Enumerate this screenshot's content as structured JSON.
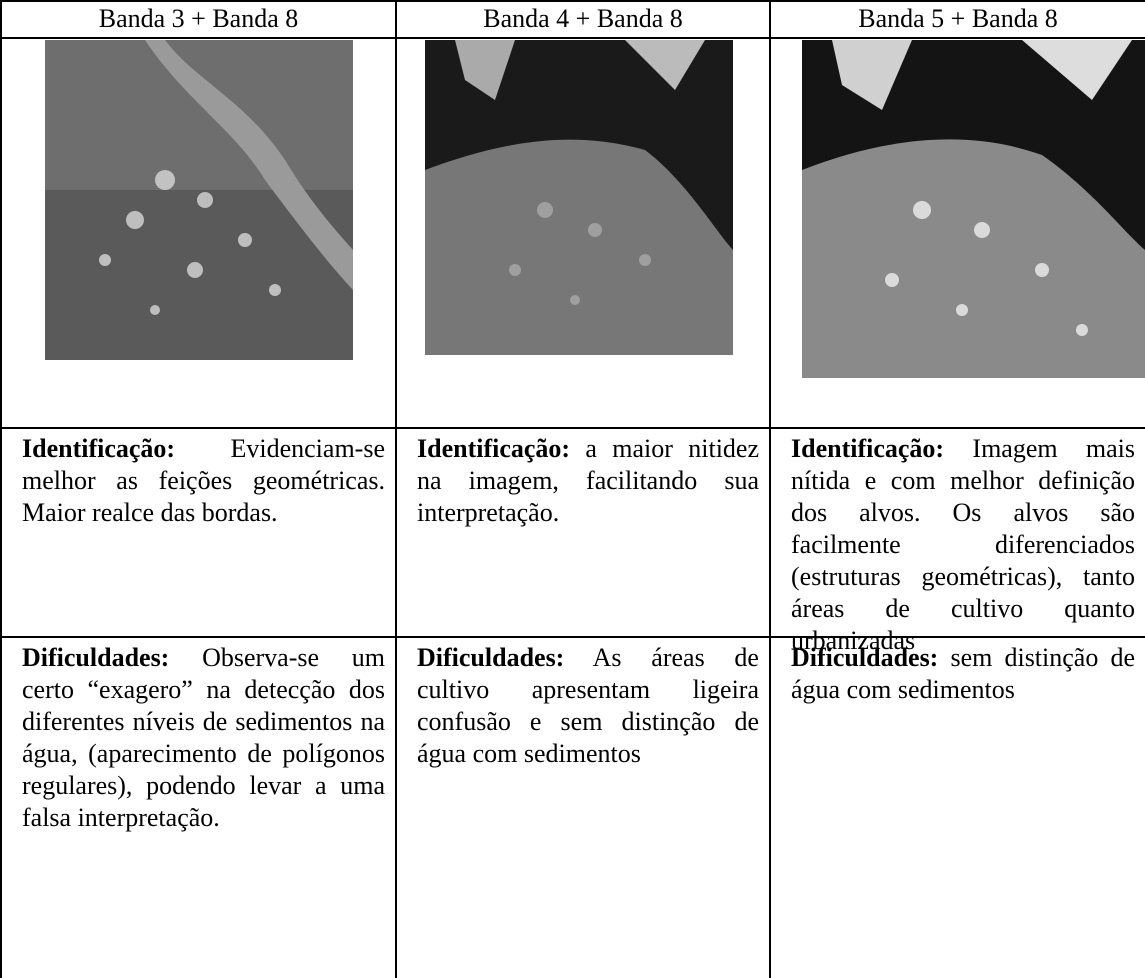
{
  "table": {
    "header": [
      "Banda 3 + Banda 8",
      "Banda 4 + Banda 8",
      "Banda 5 + Banda 8"
    ],
    "identification": [
      {
        "label": "Identificação:",
        "text": "Evidenciam-se melhor as feições geométricas. Maior realce das bordas."
      },
      {
        "label": "Identificação:",
        "text": "a maior nitidez na imagem, facilitando sua interpretação."
      },
      {
        "label": "Identificação:",
        "text": "Imagem mais nítida e com melhor definição dos alvos. Os alvos são facilmente diferenciados (estruturas geométricas), tanto áreas de cultivo quanto urbanizadas"
      }
    ],
    "difficulties": [
      {
        "label": "Dificuldades:",
        "text": "Observa-se um certo “exagero” na detecção dos diferentes níveis de sedimentos na água, (aparecimento de polígonos regulares), podendo levar a uma falsa interpretação."
      },
      {
        "label": "Dificuldades:",
        "text": "As áreas de cultivo apresentam ligeira confusão e sem distinção de água com sedimentos"
      },
      {
        "label": "Dificuldades:",
        "text": "sem distinção de água com sedimentos"
      }
    ]
  }
}
